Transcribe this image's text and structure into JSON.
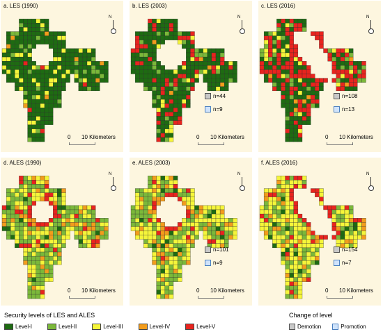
{
  "panels": [
    {
      "title": "a. LES (1990)",
      "variant": "les1990",
      "demotion": "",
      "promotion": ""
    },
    {
      "title": "b. LES (2003)",
      "variant": "les2003",
      "demotion": "n=44",
      "promotion": "n=9"
    },
    {
      "title": "c. LES (2016)",
      "variant": "les2016",
      "demotion": "n=108",
      "promotion": "n=13"
    },
    {
      "title": "d. ALES (1990)",
      "variant": "ales1990",
      "demotion": "",
      "promotion": ""
    },
    {
      "title": "e. ALES (2003)",
      "variant": "ales2003",
      "demotion": "n=101",
      "promotion": "n=9"
    },
    {
      "title": "f. ALES (2016)",
      "variant": "ales2016",
      "demotion": "n=154",
      "promotion": "n=7"
    }
  ],
  "north_label": "N",
  "scale": {
    "zero": "0",
    "label": "10 Kilometers"
  },
  "legend": {
    "title": "Security levels of LES and ALES",
    "levels": [
      {
        "label": "Level-I",
        "color": "#1e6b12"
      },
      {
        "label": "Level-II",
        "color": "#7bb83a"
      },
      {
        "label": "Level-III",
        "color": "#f5f53a"
      },
      {
        "label": "Level-IV",
        "color": "#f29c1c"
      },
      {
        "label": "Level-V",
        "color": "#e8241e"
      }
    ]
  },
  "change_legend": {
    "title": "Change of level",
    "items": [
      {
        "label": "Demotion",
        "key": "dem"
      },
      {
        "label": "Promotion",
        "key": "pro"
      }
    ]
  },
  "colors": {
    "background": "#fdf6df",
    "grid_line": "#2b2b2b"
  }
}
